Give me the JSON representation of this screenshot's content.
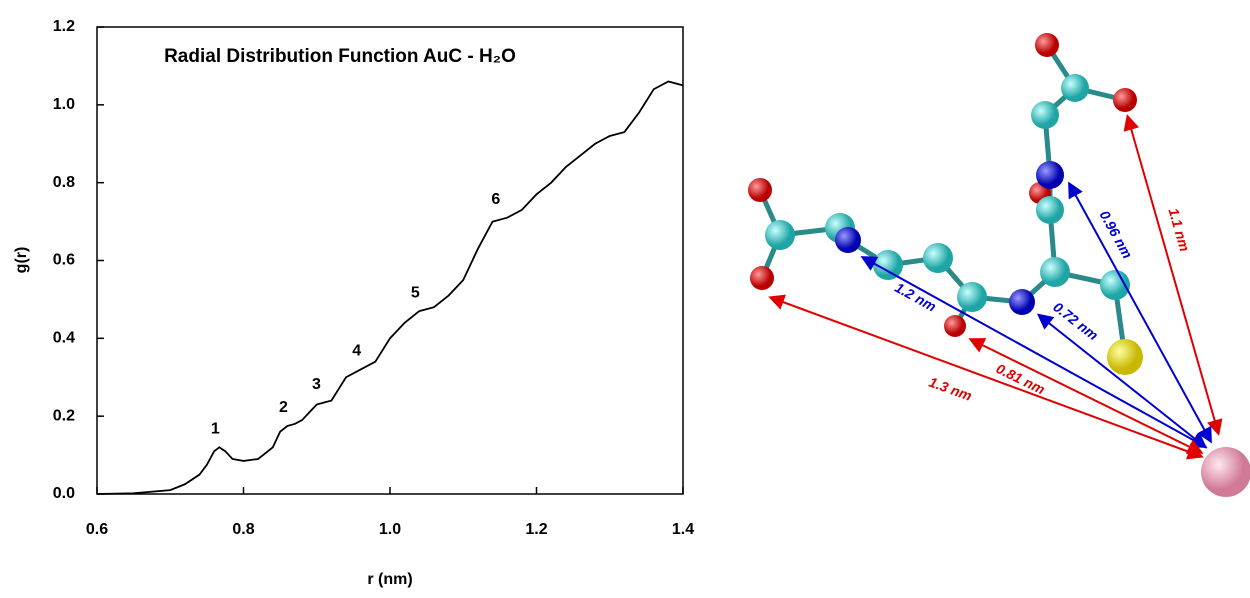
{
  "chart_data": {
    "type": "line",
    "title": "Radial Distribution Function AuC - H₂O",
    "x_label": "r (nm)",
    "y_label": "g(r)",
    "x": [
      0.6,
      0.65,
      0.7,
      0.72,
      0.74,
      0.75,
      0.76,
      0.767,
      0.775,
      0.785,
      0.8,
      0.82,
      0.84,
      0.85,
      0.86,
      0.87,
      0.88,
      0.89,
      0.9,
      0.91,
      0.92,
      0.93,
      0.94,
      0.96,
      0.98,
      1.0,
      1.02,
      1.04,
      1.06,
      1.08,
      1.1,
      1.12,
      1.14,
      1.16,
      1.18,
      1.2,
      1.22,
      1.24,
      1.26,
      1.28,
      1.3,
      1.32,
      1.34,
      1.36,
      1.38,
      1.4
    ],
    "series": [
      {
        "color": "#000000",
        "values": [
          0,
          0.002,
          0.01,
          0.025,
          0.05,
          0.075,
          0.11,
          0.12,
          0.11,
          0.09,
          0.085,
          0.09,
          0.12,
          0.16,
          0.175,
          0.18,
          0.19,
          0.21,
          0.23,
          0.235,
          0.24,
          0.27,
          0.3,
          0.32,
          0.34,
          0.4,
          0.44,
          0.47,
          0.48,
          0.51,
          0.55,
          0.63,
          0.7,
          0.71,
          0.73,
          0.77,
          0.8,
          0.84,
          0.87,
          0.9,
          0.92,
          0.93,
          0.98,
          1.04,
          1.06,
          1.05
        ]
      }
    ],
    "xlim": [
      0.6,
      1.4
    ],
    "xticks": [
      0.6,
      0.8,
      {
        "value": 1,
        "label": "1.0"
      },
      1.2,
      1.4
    ],
    "ylim": [
      0,
      1.2
    ],
    "yticks": [
      {
        "value": 0,
        "label": "0.0"
      },
      0.2,
      0.4,
      0.6,
      0.8,
      {
        "value": 1,
        "label": "1.0"
      },
      1.2
    ],
    "annotations": [
      {
        "text": "1",
        "x": 0.767,
        "y": 0.12
      },
      {
        "text": "2",
        "x": 0.86,
        "y": 0.175
      },
      {
        "text": "3",
        "x": 0.905,
        "y": 0.235
      },
      {
        "text": "4",
        "x": 0.96,
        "y": 0.32
      },
      {
        "text": "5",
        "x": 1.04,
        "y": 0.47
      },
      {
        "text": "6",
        "x": 1.15,
        "y": 0.71
      }
    ]
  },
  "diagram": {
    "distance_labels": [
      "1.1 nm",
      "0.96 nm",
      "1.2 nm",
      "0.72 nm",
      "0.81 nm",
      "1.3 nm"
    ]
  }
}
